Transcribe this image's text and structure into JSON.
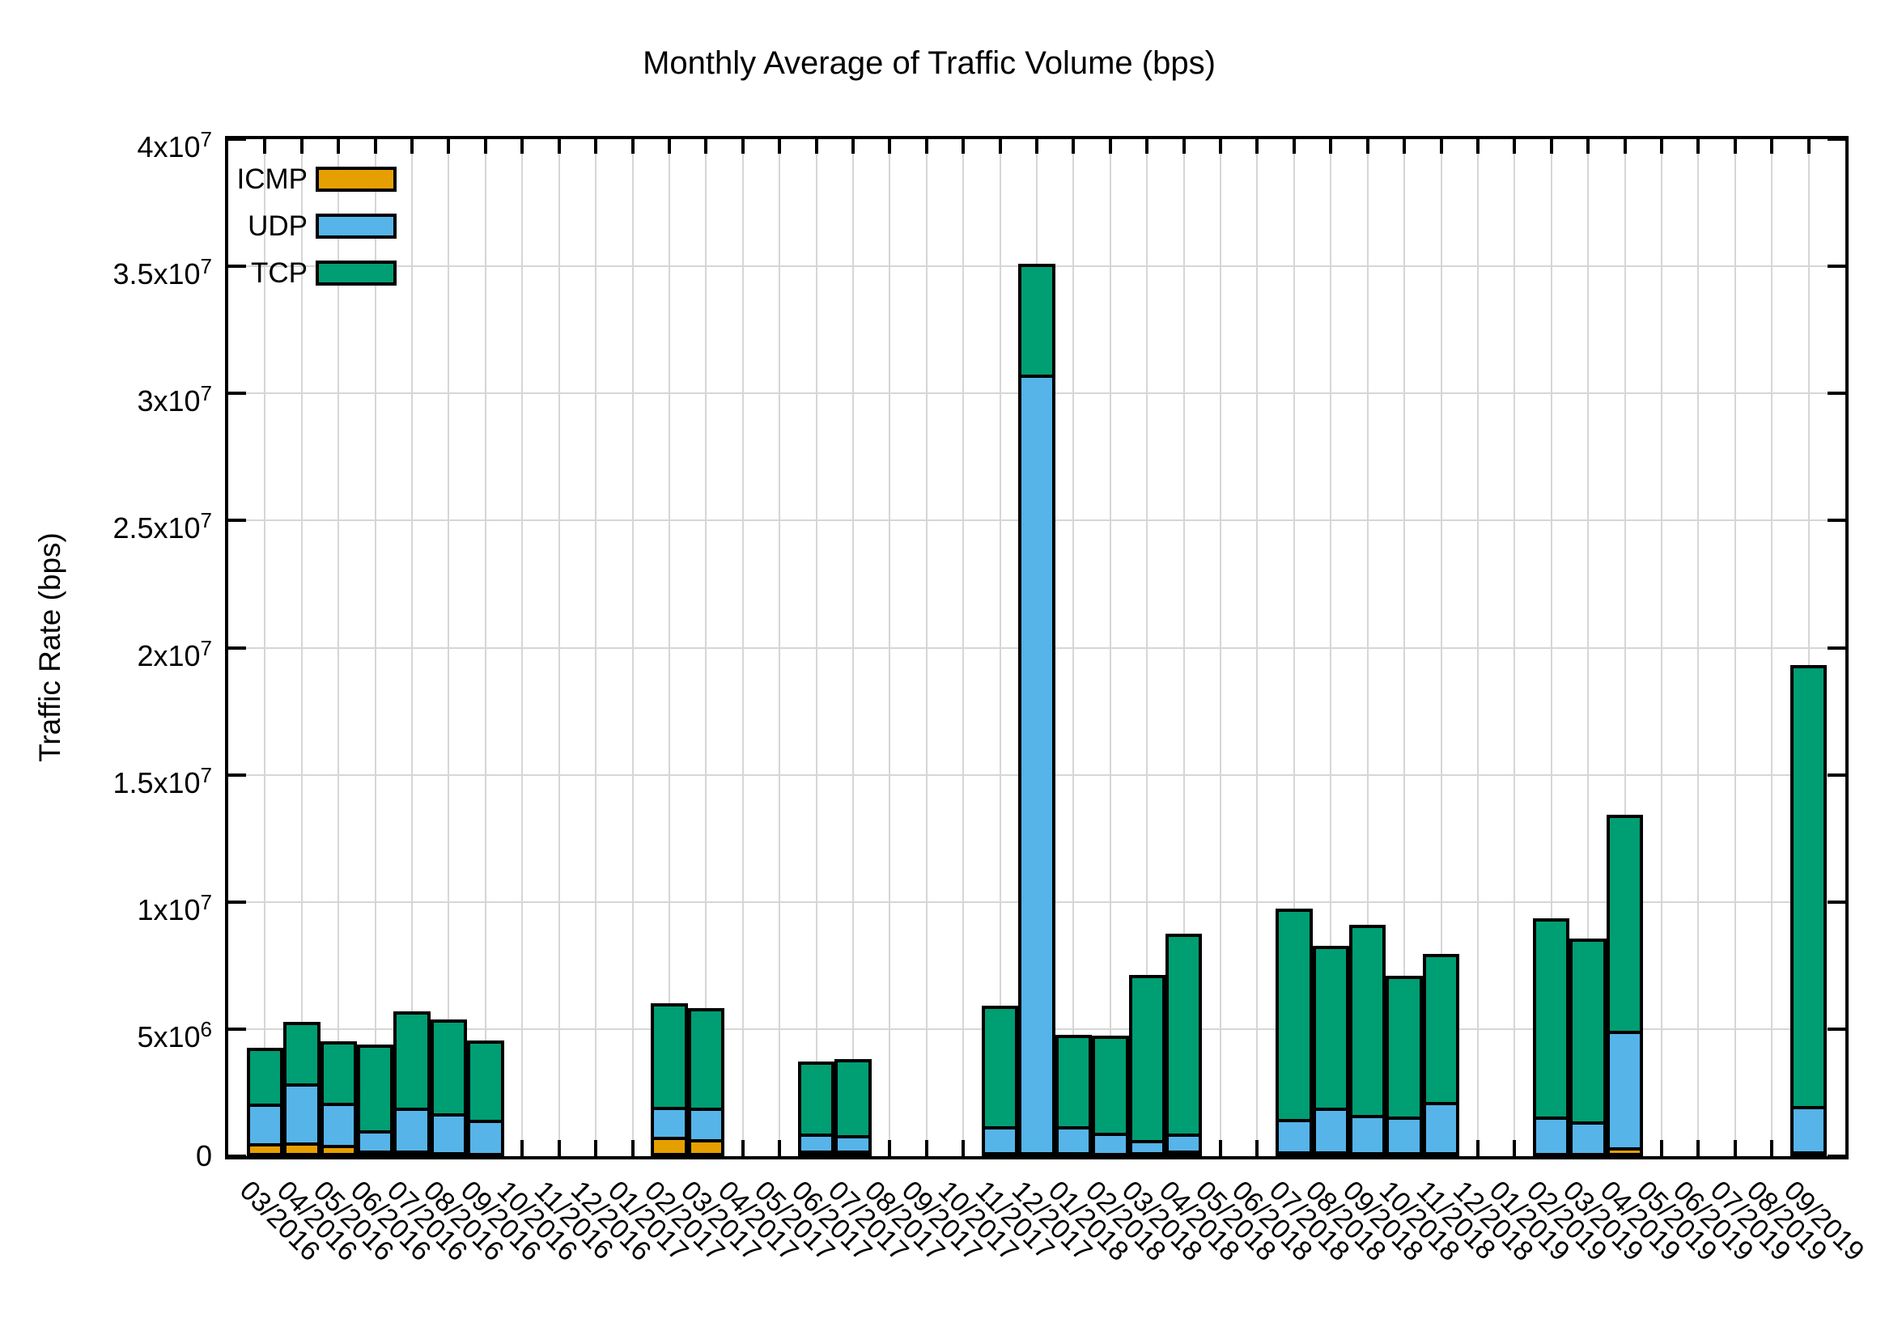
{
  "chart_data": {
    "type": "bar",
    "stacked": true,
    "title": "Monthly Average of Traffic Volume (bps)",
    "ylabel": "Traffic Rate (bps)",
    "xlabel": "",
    "ylim": [
      0,
      40000000
    ],
    "grid": true,
    "legend_position": "inside-top-left",
    "ytick_values": [
      0,
      5000000,
      10000000,
      15000000,
      20000000,
      25000000,
      30000000,
      35000000,
      40000000
    ],
    "ytick_labels": [
      "0",
      "5x10^6",
      "1x10^7",
      "1.5x10^7",
      "2x10^7",
      "2.5x10^7",
      "3x10^7",
      "3.5x10^7",
      "4x10^7"
    ],
    "categories": [
      "03/2016",
      "04/2016",
      "05/2016",
      "06/2016",
      "07/2016",
      "08/2016",
      "09/2016",
      "10/2016",
      "11/2016",
      "12/2016",
      "01/2017",
      "02/2017",
      "03/2017",
      "04/2017",
      "05/2017",
      "06/2017",
      "07/2017",
      "08/2017",
      "09/2017",
      "10/2017",
      "11/2017",
      "12/2017",
      "01/2018",
      "02/2018",
      "03/2018",
      "04/2018",
      "05/2018",
      "06/2018",
      "07/2018",
      "08/2018",
      "09/2018",
      "10/2018",
      "11/2018",
      "12/2018",
      "01/2019",
      "02/2019",
      "03/2019",
      "04/2019",
      "05/2019",
      "06/2019",
      "07/2019",
      "08/2019",
      "09/2019"
    ],
    "series": [
      {
        "name": "ICMP",
        "color": "#E69F00",
        "values": [
          500000,
          530000,
          440000,
          210000,
          230000,
          170000,
          130000,
          0,
          0,
          0,
          0,
          760000,
          660000,
          0,
          0,
          230000,
          210000,
          0,
          0,
          0,
          160000,
          150000,
          160000,
          80000,
          170000,
          230000,
          0,
          0,
          190000,
          200000,
          150000,
          160000,
          150000,
          0,
          0,
          50000,
          80000,
          350000,
          0,
          0,
          0,
          0,
          190000
        ]
      },
      {
        "name": "UDP",
        "color": "#56B4E9",
        "values": [
          1560000,
          2340000,
          1670000,
          810000,
          1670000,
          1520000,
          1290000,
          0,
          0,
          0,
          0,
          1190000,
          1240000,
          0,
          0,
          670000,
          630000,
          0,
          0,
          0,
          1020000,
          30580000,
          1020000,
          840000,
          480000,
          670000,
          0,
          0,
          1260000,
          1710000,
          1480000,
          1410000,
          1990000,
          0,
          0,
          1500000,
          1300000,
          4590000,
          0,
          0,
          0,
          0,
          1790000
        ]
      },
      {
        "name": "TCP",
        "color": "#009E73",
        "values": [
          2210000,
          2420000,
          2420000,
          3360000,
          3800000,
          3690000,
          3140000,
          0,
          0,
          0,
          0,
          4060000,
          3920000,
          0,
          0,
          2810000,
          2980000,
          0,
          0,
          0,
          4730000,
          4370000,
          3590000,
          3830000,
          6490000,
          7840000,
          0,
          0,
          8290000,
          6370000,
          7480000,
          5520000,
          5800000,
          0,
          0,
          7820000,
          7180000,
          8480000,
          0,
          0,
          0,
          0,
          17320000
        ]
      }
    ],
    "colors": {
      "axis": "#000000",
      "grid": "#d6d6d6",
      "background": "#ffffff"
    }
  }
}
